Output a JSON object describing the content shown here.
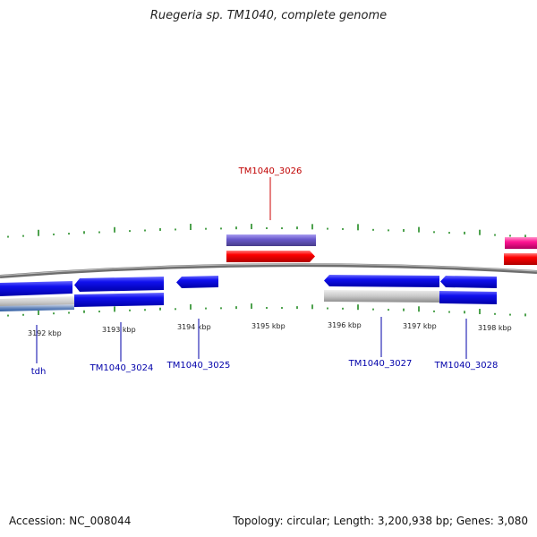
{
  "title": "Ruegeria sp. TM1040, complete genome",
  "accession": "Accession: NC_008044",
  "topology": "Topology: circular; Length: 3,200,938 bp; Genes: 3,080",
  "ticks": [
    {
      "label": "3192 kbp"
    },
    {
      "label": "3193 kbp"
    },
    {
      "label": "3194 kbp"
    },
    {
      "label": "3195 kbp"
    },
    {
      "label": "3196 kbp"
    },
    {
      "label": "3197 kbp"
    },
    {
      "label": "3198 kbp"
    }
  ],
  "genes": [
    {
      "label": "TM1040_3026",
      "color": "#cc0000"
    },
    {
      "label": "tdh",
      "color": "#0000aa"
    },
    {
      "label": "TM1040_3024",
      "color": "#0000aa"
    },
    {
      "label": "TM1040_3025",
      "color": "#0000aa"
    },
    {
      "label": "TM1040_3027",
      "color": "#0000aa"
    },
    {
      "label": "TM1040_3028",
      "color": "#0000aa"
    }
  ],
  "colors": {
    "forward_cds": "#ff0000",
    "reverse_cds": "#0000ee",
    "purple_feature": "#6a5acd",
    "pink_feature": "#ff1493",
    "gray_feature": "#c0c0c0",
    "backbone": "#808080",
    "gc_ticks": "#228b22"
  }
}
